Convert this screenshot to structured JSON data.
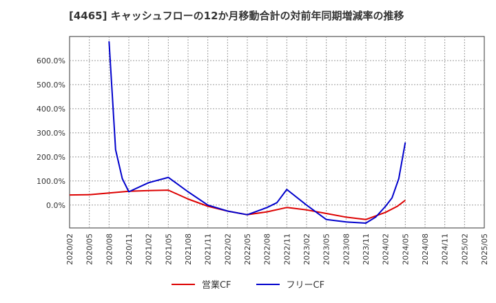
{
  "chart_data": {
    "type": "line",
    "title": "[4465]  キャッシュフローの12か月移動合計の対前年同期増減率の推移",
    "xlabel": "",
    "ylabel": "",
    "ylim": [
      -95,
      700
    ],
    "y_ticks": [
      0,
      100,
      200,
      300,
      400,
      500,
      600
    ],
    "y_tick_labels": [
      "0.0%",
      "100.0%",
      "200.0%",
      "300.0%",
      "400.0%",
      "500.0%",
      "600.0%"
    ],
    "categories": [
      "2020/02",
      "2020/05",
      "2020/08",
      "2020/11",
      "2021/02",
      "2021/05",
      "2021/08",
      "2021/11",
      "2022/02",
      "2022/05",
      "2022/08",
      "2022/11",
      "2023/02",
      "2023/05",
      "2023/08",
      "2023/11",
      "2024/02",
      "2024/05",
      "2024/08",
      "2024/11",
      "2025/02",
      "2025/05"
    ],
    "series": [
      {
        "name": "営業CF",
        "color": "#dd0000",
        "points": [
          [
            0,
            42
          ],
          [
            1,
            43
          ],
          [
            2,
            50
          ],
          [
            3,
            57
          ],
          [
            4,
            60
          ],
          [
            5,
            62
          ],
          [
            6,
            25
          ],
          [
            7,
            -5
          ],
          [
            8,
            -25
          ],
          [
            9,
            -40
          ],
          [
            10,
            -28
          ],
          [
            11,
            -10
          ],
          [
            12,
            -20
          ],
          [
            13,
            -35
          ],
          [
            14,
            -50
          ],
          [
            15,
            -60
          ],
          [
            16,
            -30
          ],
          [
            16.6,
            -5
          ],
          [
            17,
            20
          ]
        ]
      },
      {
        "name": "フリーCF",
        "color": "#0000cc",
        "points": [
          [
            2,
            680
          ],
          [
            2.33,
            230
          ],
          [
            2.67,
            110
          ],
          [
            3,
            55
          ],
          [
            4,
            93
          ],
          [
            5,
            115
          ],
          [
            6,
            55
          ],
          [
            7,
            0
          ],
          [
            8,
            -25
          ],
          [
            9,
            -40
          ],
          [
            10,
            -10
          ],
          [
            10.5,
            10
          ],
          [
            11,
            65
          ],
          [
            12,
            0
          ],
          [
            13,
            -60
          ],
          [
            14,
            -70
          ],
          [
            15,
            -75
          ],
          [
            15.5,
            -50
          ],
          [
            16,
            -5
          ],
          [
            16.33,
            30
          ],
          [
            16.67,
            110
          ],
          [
            17,
            260
          ]
        ]
      }
    ],
    "legend": [
      "営業CF",
      "フリーCF"
    ],
    "legend_position": "bottom-center",
    "grid": true
  }
}
